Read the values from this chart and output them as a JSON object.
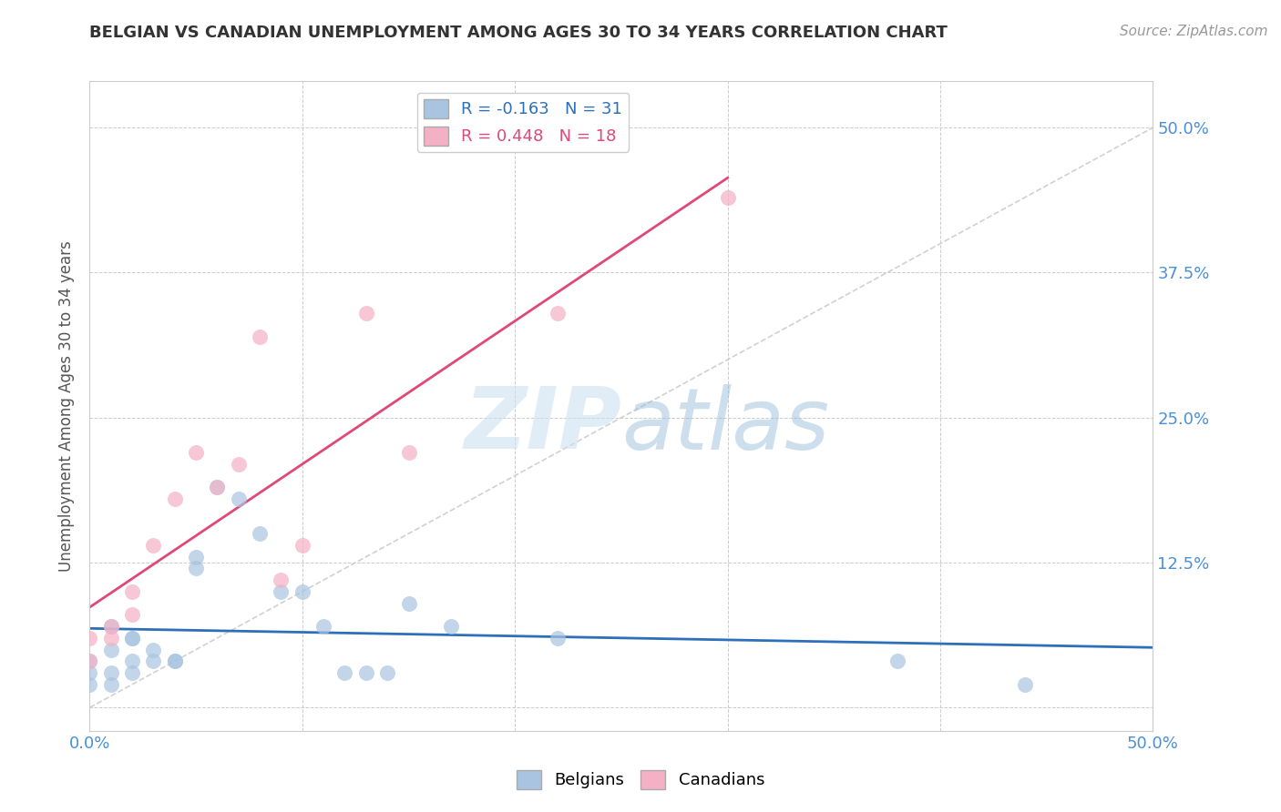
{
  "title": "BELGIAN VS CANADIAN UNEMPLOYMENT AMONG AGES 30 TO 34 YEARS CORRELATION CHART",
  "source": "Source: ZipAtlas.com",
  "ylabel": "Unemployment Among Ages 30 to 34 years",
  "xlim": [
    0.0,
    0.5
  ],
  "ylim": [
    -0.02,
    0.54
  ],
  "xticks": [
    0.0,
    0.1,
    0.2,
    0.3,
    0.4,
    0.5
  ],
  "xticklabels": [
    "0.0%",
    "",
    "",
    "",
    "",
    "50.0%"
  ],
  "yticks": [
    0.0,
    0.125,
    0.25,
    0.375,
    0.5
  ],
  "yticklabels": [
    "",
    "12.5%",
    "25.0%",
    "37.5%",
    "50.0%"
  ],
  "belgians_x": [
    0.0,
    0.0,
    0.0,
    0.01,
    0.01,
    0.01,
    0.01,
    0.02,
    0.02,
    0.02,
    0.02,
    0.03,
    0.03,
    0.04,
    0.04,
    0.05,
    0.05,
    0.06,
    0.07,
    0.08,
    0.09,
    0.1,
    0.11,
    0.12,
    0.13,
    0.14,
    0.15,
    0.17,
    0.22,
    0.38,
    0.44
  ],
  "belgians_y": [
    0.02,
    0.03,
    0.04,
    0.02,
    0.03,
    0.05,
    0.07,
    0.03,
    0.04,
    0.06,
    0.06,
    0.04,
    0.05,
    0.04,
    0.04,
    0.12,
    0.13,
    0.19,
    0.18,
    0.15,
    0.1,
    0.1,
    0.07,
    0.03,
    0.03,
    0.03,
    0.09,
    0.07,
    0.06,
    0.04,
    0.02
  ],
  "canadians_x": [
    0.0,
    0.0,
    0.01,
    0.01,
    0.02,
    0.02,
    0.03,
    0.04,
    0.05,
    0.06,
    0.07,
    0.08,
    0.09,
    0.1,
    0.13,
    0.15,
    0.22,
    0.3
  ],
  "canadians_y": [
    0.04,
    0.06,
    0.06,
    0.07,
    0.08,
    0.1,
    0.14,
    0.18,
    0.22,
    0.19,
    0.21,
    0.32,
    0.11,
    0.14,
    0.34,
    0.22,
    0.34,
    0.44
  ],
  "belgian_color": "#a8c4e0",
  "canadian_color": "#f4b0c4",
  "belgian_line_color": "#2e6fba",
  "canadian_line_color": "#e04878",
  "diagonal_color": "#cccccc",
  "r_belgian": -0.163,
  "n_belgian": 31,
  "r_canadian": 0.448,
  "n_canadian": 18,
  "background_color": "#ffffff",
  "grid_color": "#cccccc"
}
